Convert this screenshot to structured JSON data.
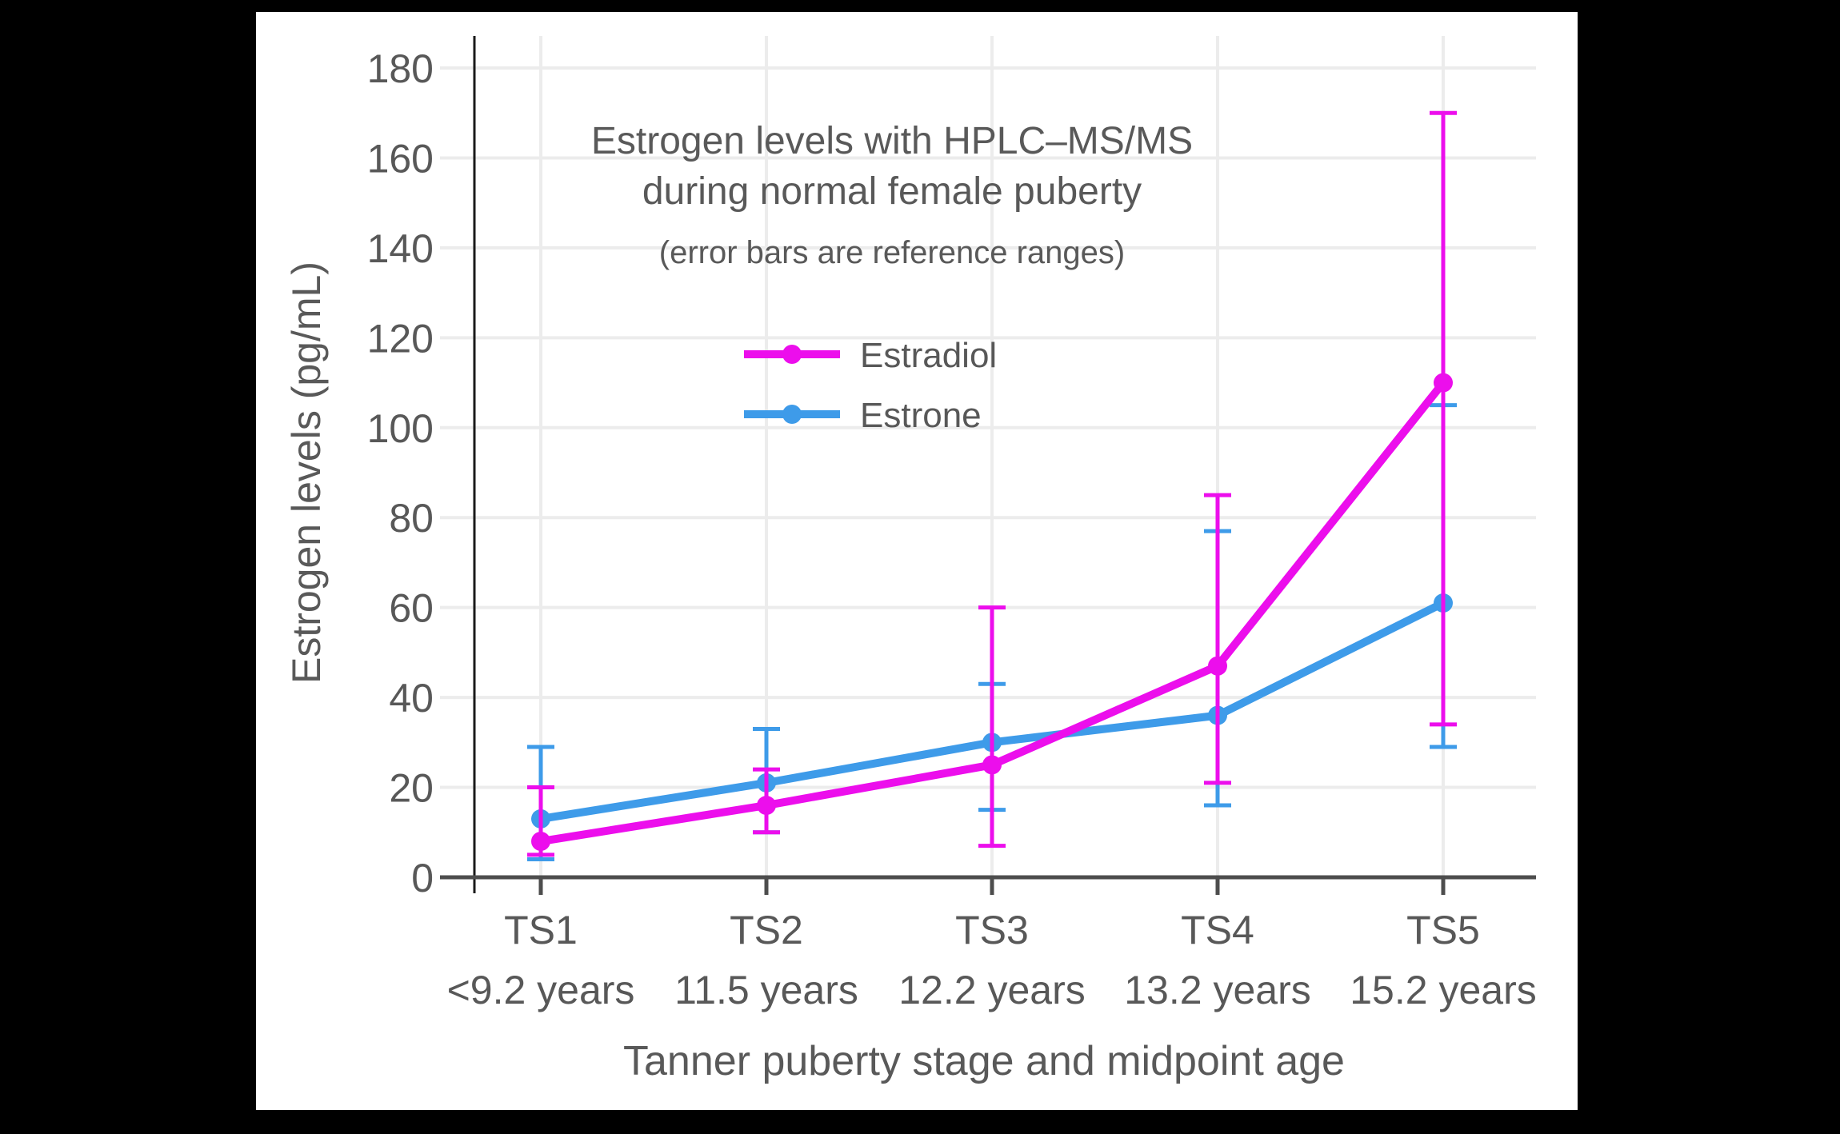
{
  "chart_data": {
    "type": "line",
    "title": "Estrogen levels with HPLC–MS/MS\nduring normal female puberty",
    "subtitle": "(error bars are reference ranges)",
    "ylabel": "Estrogen levels (pg/mL)",
    "xlabel": "Tanner puberty stage and midpoint age",
    "categories": [
      "TS1",
      "TS2",
      "TS3",
      "TS4",
      "TS5"
    ],
    "category_sublabels": [
      "<9.2 years",
      "11.5 years",
      "12.2 years",
      "13.2 years",
      "15.2 years"
    ],
    "ylim": [
      0,
      180
    ],
    "ytick_step": 20,
    "yticks": [
      0,
      20,
      40,
      60,
      80,
      100,
      120,
      140,
      160,
      180
    ],
    "grid": true,
    "legend_position": "inside-upper-center",
    "error_bar_meaning": "reference ranges",
    "series": [
      {
        "name": "Estradiol",
        "color": "#EC0EEC",
        "values": [
          8,
          16,
          25,
          47,
          110
        ],
        "error_low": [
          5,
          10,
          7,
          21,
          34
        ],
        "error_high": [
          20,
          24,
          60,
          85,
          170
        ]
      },
      {
        "name": "Estrone",
        "color": "#3E9BE9",
        "values": [
          13,
          21,
          30,
          36,
          61
        ],
        "error_low": [
          4,
          10,
          15,
          16,
          29
        ],
        "error_high": [
          29,
          33,
          43,
          77,
          105
        ]
      }
    ]
  }
}
